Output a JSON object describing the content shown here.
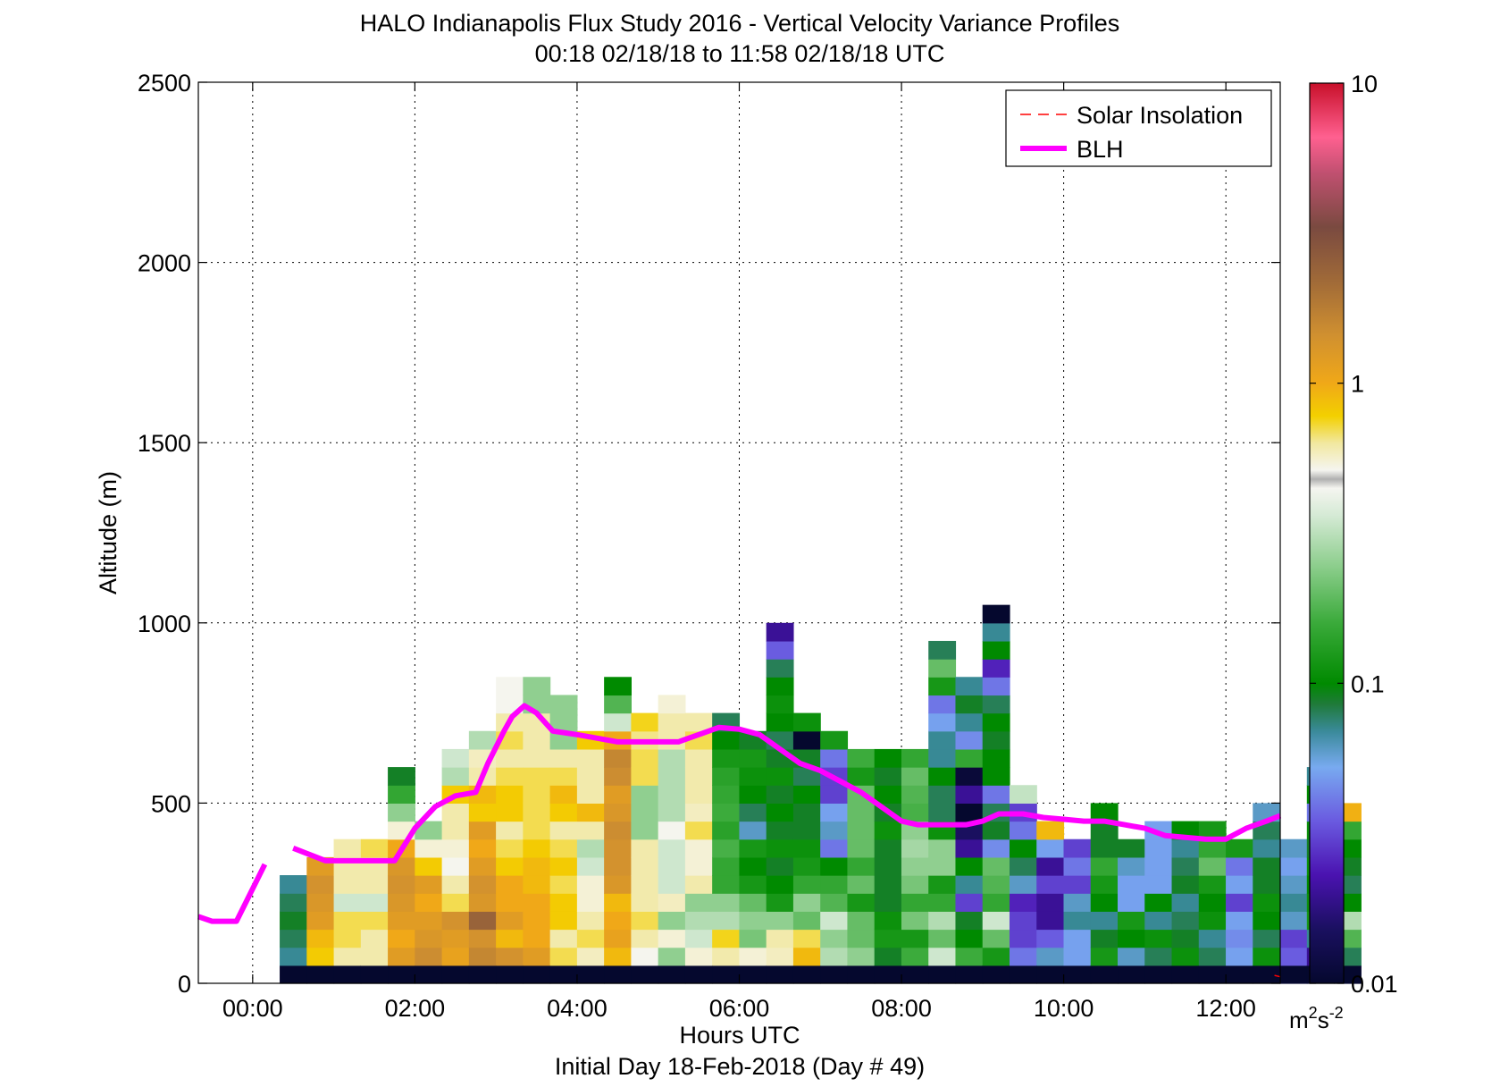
{
  "chart_data": {
    "type": "heatmap",
    "title": "HALO Indianapolis Flux Study 2016 - Vertical Velocity Variance Profiles",
    "subtitle": "00:18 02/18/18 to 11:58 02/18/18  UTC",
    "xlabel": "Hours UTC",
    "xlabel2": "Initial Day 18-Feb-2018 (Day # 49)",
    "ylabel": "Altitude (m)",
    "xlim": [
      -0.67,
      12.67
    ],
    "ylim": [
      0,
      2500
    ],
    "x_ticks": [
      0,
      2,
      4,
      6,
      8,
      10,
      12
    ],
    "x_tick_labels": [
      "00:00",
      "02:00",
      "04:00",
      "06:00",
      "08:00",
      "10:00",
      "12:00"
    ],
    "y_ticks": [
      0,
      500,
      1000,
      1500,
      2000,
      2500
    ],
    "y_tick_labels": [
      "0",
      "500",
      "1000",
      "1500",
      "2000",
      "2500"
    ],
    "grid": true,
    "legend_position": "top-right",
    "legend": [
      {
        "label": "Solar Insolation",
        "color": "#ff0000",
        "style": "dashed"
      },
      {
        "label": "BLH",
        "color": "#ff00ff",
        "style": "solid"
      }
    ],
    "colorbar": {
      "scale": "log",
      "min": 0.01,
      "max": 10,
      "ticks": [
        0.01,
        0.1,
        1,
        10
      ],
      "tick_labels": [
        "0.01",
        "0.1",
        "1",
        "10"
      ],
      "unit_base": "m",
      "unit_sup1": "2",
      "unit_mid": "s",
      "unit_sup2": "-2"
    },
    "grid_spec": {
      "t0": 0.333,
      "dt": 0.3333,
      "z0": 50,
      "dz": 50,
      "bottom_row_value": 0.01
    },
    "variance_columns": [
      [
        0.07,
        0.08,
        0.09,
        0.08,
        0.07
      ],
      [
        0.8,
        0.9,
        1.2,
        1.3,
        1.4,
        1.2
      ],
      [
        0.6,
        0.7,
        0.7,
        0.35,
        0.6,
        0.6,
        0.6
      ],
      [
        0.6,
        0.6,
        0.7,
        0.35,
        0.6,
        0.6,
        0.7
      ],
      [
        1.2,
        1.0,
        1.2,
        1.3,
        1.4,
        1.3,
        1.0,
        0.5,
        0.25,
        0.15,
        0.09
      ],
      [
        1.5,
        1.3,
        1.2,
        1.0,
        1.2,
        0.8,
        0.5,
        0.25
      ],
      [
        1.1,
        1.2,
        1.4,
        0.7,
        0.6,
        0.45,
        0.5,
        0.6,
        0.6,
        0.8,
        0.3,
        0.35
      ],
      [
        1.6,
        1.4,
        2.4,
        1.3,
        1.4,
        1.2,
        1.0,
        1.2,
        0.8,
        0.9,
        0.6,
        0.55,
        0.3
      ],
      [
        1.4,
        0.9,
        1.2,
        1.0,
        1.0,
        0.8,
        0.7,
        0.6,
        0.8,
        0.8,
        0.7,
        0.6,
        0.7,
        0.6,
        0.45,
        0.45
      ],
      [
        1.2,
        1.0,
        1.0,
        1.0,
        0.9,
        0.9,
        0.8,
        0.7,
        0.7,
        0.7,
        0.7,
        0.6,
        0.6,
        0.6,
        0.25,
        0.25
      ],
      [
        0.7,
        0.6,
        0.8,
        0.8,
        0.7,
        0.8,
        0.7,
        0.6,
        0.8,
        0.9,
        0.7,
        0.6,
        0.25,
        0.25,
        0.25
      ],
      [
        0.55,
        0.7,
        0.6,
        0.5,
        0.5,
        0.35,
        0.3,
        0.6,
        0.9,
        0.6,
        0.6,
        0.6,
        0.8
      ],
      [
        0.9,
        1.1,
        1.0,
        0.9,
        1.3,
        1.4,
        1.4,
        1.5,
        1.3,
        1.2,
        1.5,
        1.6,
        1.0,
        0.35,
        0.18,
        0.1
      ],
      [
        0.45,
        0.6,
        0.7,
        0.6,
        0.6,
        0.6,
        0.6,
        0.25,
        0.25,
        0.25,
        0.7,
        0.7,
        0.65,
        0.75
      ],
      [
        0.25,
        0.5,
        0.25,
        0.55,
        0.35,
        0.35,
        0.35,
        0.45,
        0.3,
        0.3,
        0.3,
        0.3,
        0.6,
        0.6,
        0.5
      ],
      [
        0.5,
        0.35,
        0.3,
        0.25,
        0.6,
        0.5,
        0.5,
        0.7,
        0.55,
        0.6,
        0.6,
        0.6,
        0.7,
        0.6
      ],
      [
        0.6,
        0.75,
        0.3,
        0.25,
        0.15,
        0.15,
        0.17,
        0.14,
        0.16,
        0.15,
        0.14,
        0.12,
        0.1,
        0.08
      ],
      [
        0.5,
        0.22,
        0.25,
        0.2,
        0.12,
        0.1,
        0.12,
        0.06,
        0.08,
        0.1,
        0.11,
        0.12,
        0.09
      ],
      [
        0.55,
        0.6,
        0.25,
        0.12,
        0.1,
        0.09,
        0.11,
        0.09,
        0.1,
        0.09,
        0.11,
        0.09,
        0.08,
        0.1,
        0.11,
        0.1,
        0.08,
        0.035,
        0.02
      ],
      [
        0.9,
        0.7,
        0.2,
        0.25,
        0.15,
        0.12,
        0.11,
        0.09,
        0.09,
        0.1,
        0.08,
        0.09,
        0.01,
        0.11
      ],
      [
        0.3,
        0.25,
        0.35,
        0.18,
        0.15,
        0.1,
        0.04,
        0.06,
        0.05,
        0.03,
        0.03,
        0.04,
        0.12
      ],
      [
        0.25,
        0.2,
        0.2,
        0.12,
        0.2,
        0.15,
        0.2,
        0.2,
        0.2,
        0.2,
        0.12,
        0.16
      ],
      [
        0.09,
        0.12,
        0.11,
        0.09,
        0.09,
        0.09,
        0.09,
        0.11,
        0.09,
        0.1,
        0.09,
        0.1
      ],
      [
        0.16,
        0.12,
        0.22,
        0.15,
        0.22,
        0.25,
        0.28,
        0.25,
        0.17,
        0.18,
        0.2,
        0.15
      ],
      [
        0.35,
        0.2,
        0.3,
        0.15,
        0.12,
        0.25,
        0.25,
        0.11,
        0.08,
        0.08,
        0.1,
        0.07,
        0.07,
        0.05,
        0.04,
        0.12,
        0.2,
        0.08
      ],
      [
        0.16,
        0.1,
        0.09,
        0.03,
        0.07,
        0.1,
        0.02,
        0.015,
        0.01,
        0.02,
        0.011,
        0.15,
        0.045,
        0.07,
        0.09,
        0.07
      ],
      [
        0.12,
        0.2,
        0.35,
        0.15,
        0.18,
        0.2,
        0.045,
        0.09,
        0.08,
        0.04,
        0.1,
        0.1,
        0.09,
        0.1,
        0.08,
        0.04,
        0.025,
        0.1,
        0.07,
        0.01
      ],
      [
        0.04,
        0.03,
        0.03,
        0.025,
        0.06,
        0.08,
        0.1,
        0.04,
        0.03,
        0.33
      ],
      [
        0.06,
        0.035,
        0.02,
        0.02,
        0.03,
        0.02,
        0.05,
        0.9
      ],
      [
        0.05,
        0.05,
        0.07,
        0.06,
        0.03,
        0.04,
        0.03
      ],
      [
        0.12,
        0.09,
        0.07,
        0.1,
        0.12,
        0.15,
        0.09,
        0.09,
        0.1
      ],
      [
        0.06,
        0.1,
        0.12,
        0.05,
        0.05,
        0.06,
        0.09
      ],
      [
        0.08,
        0.11,
        0.07,
        0.1,
        0.05,
        0.05,
        0.05,
        0.05
      ],
      [
        0.11,
        0.09,
        0.08,
        0.07,
        0.09,
        0.08,
        0.07,
        0.1
      ],
      [
        0.08,
        0.07,
        0.11,
        0.1,
        0.12,
        0.2,
        0.15,
        0.12
      ],
      [
        0.05,
        0.045,
        0.05,
        0.03,
        0.05,
        0.04,
        0.12
      ],
      [
        0.11,
        0.08,
        0.1,
        0.11,
        0.09,
        0.09,
        0.07,
        0.08,
        0.06
      ],
      [
        0.035,
        0.03,
        0.06,
        0.07,
        0.06,
        0.05,
        0.06
      ],
      [
        0.02,
        0.07,
        0.12,
        0.11,
        0.1,
        0.11,
        0.09,
        0.11,
        0.04,
        0.1,
        0.07
      ],
      [
        0.08,
        0.18,
        0.3,
        0.1,
        0.08,
        0.09,
        0.1,
        0.15,
        0.95
      ]
    ],
    "series": [
      {
        "name": "BLH",
        "segments": [
          {
            "x": [
              -0.67,
              -0.5,
              -0.2,
              0.15
            ],
            "y": [
              185,
              172,
              172,
              330
            ]
          },
          {
            "x": [
              0.5,
              0.9,
              1.2,
              1.5,
              1.75,
              2.0,
              2.25,
              2.5,
              2.75,
              2.9,
              3.1,
              3.2,
              3.35,
              3.5,
              3.7,
              4.0,
              4.25,
              4.5,
              4.75,
              5.0,
              5.25,
              5.5,
              5.75,
              6.0,
              6.25,
              6.5,
              6.75,
              7.0,
              7.25,
              7.5,
              7.75,
              8.0,
              8.2,
              8.5,
              8.8,
              9.0,
              9.2,
              9.5,
              9.75,
              10.0,
              10.25,
              10.5,
              10.75,
              11.0,
              11.25,
              11.5,
              11.75,
              12.0,
              12.25,
              12.5,
              12.67
            ],
            "y": [
              375,
              340,
              340,
              340,
              340,
              430,
              490,
              520,
              530,
              610,
              700,
              740,
              770,
              750,
              700,
              690,
              680,
              670,
              670,
              670,
              670,
              690,
              710,
              705,
              690,
              650,
              610,
              590,
              560,
              530,
              490,
              450,
              440,
              440,
              440,
              450,
              470,
              470,
              460,
              455,
              450,
              450,
              440,
              430,
              410,
              405,
              400,
              400,
              430,
              450,
              465
            ]
          }
        ]
      },
      {
        "name": "Solar Insolation",
        "segments": [
          {
            "x": [
              12.6,
              12.67
            ],
            "y": [
              22,
              18
            ]
          }
        ]
      }
    ]
  }
}
